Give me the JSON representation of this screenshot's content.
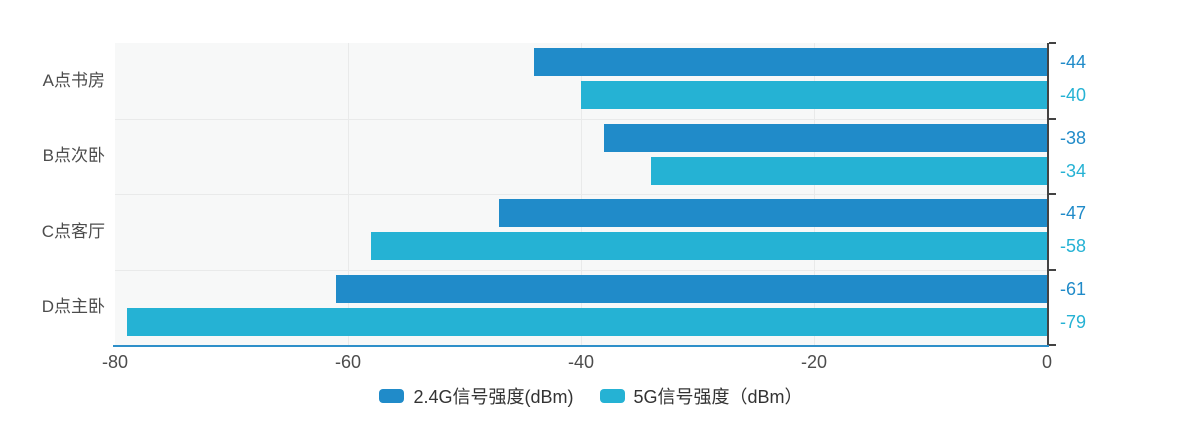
{
  "chart_data": {
    "type": "bar",
    "orientation": "horizontal",
    "title": "",
    "categories": [
      "A点书房",
      "B点次卧",
      "C点客厅",
      "D点主卧"
    ],
    "series": [
      {
        "name": "2.4G信号强度(dBm)",
        "color": "#208BC9",
        "values": [
          -44,
          -38,
          -47,
          -61
        ]
      },
      {
        "name": "5G信号强度（dBm）",
        "color": "#25B2D4",
        "values": [
          -40,
          -34,
          -58,
          -79
        ]
      }
    ],
    "value_labels": [
      "-44",
      "-40",
      "-38",
      "-34",
      "-47",
      "-58",
      "-61",
      "-79"
    ],
    "x_axis": {
      "min": -80,
      "max": 0,
      "tick_labels": [
        "-80",
        "-60",
        "-40",
        "-20",
        "0"
      ]
    },
    "legend_position": "bottom",
    "legend_marker": "roundRect",
    "grid": true
  },
  "colors": {
    "x_axis_line": "#2E8FC9",
    "y_axis_line": "#434343",
    "plot_background": "#f7f8f8",
    "grid_line": "#e9eaea",
    "axis_text": "#4c4c4c",
    "legend_text": "#333333"
  }
}
